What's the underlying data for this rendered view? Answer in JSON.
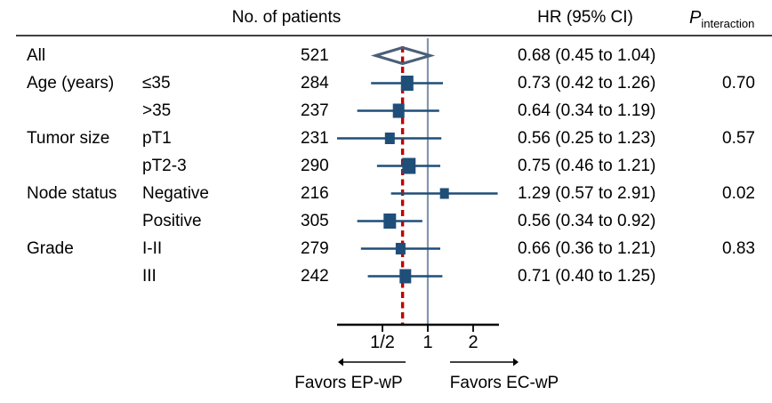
{
  "header": {
    "patients": "No. of patients",
    "hr": "HR (95% CI)",
    "p_main": "P",
    "p_sub": "interaction"
  },
  "axis": {
    "scale": "log2",
    "ticks": [
      {
        "label": "1/2",
        "value": 0.5
      },
      {
        "label": "1",
        "value": 1
      },
      {
        "label": "2",
        "value": 2
      }
    ],
    "range": [
      0.25,
      3.0
    ],
    "favors_left": "Favors EP-wP",
    "favors_right": "Favors EC-wP"
  },
  "colors": {
    "marker": "#1f4e79",
    "ci_line": "#1f4e79",
    "ref_line": "#8496b0",
    "overall_dashed_line": "#c00000",
    "diamond_stroke": "#4b5f78",
    "axis": "#000000",
    "rule": "#404040",
    "text": "#000000"
  },
  "chart_data": {
    "type": "forest",
    "scale": "log2",
    "overall": {
      "group": "All",
      "n": 521,
      "hr": 0.68,
      "lo": 0.45,
      "hi": 1.04,
      "p": ""
    },
    "rows": [
      {
        "group": "Age (years)",
        "sub": "≤35",
        "n": 284,
        "hr": 0.73,
        "lo": 0.42,
        "hi": 1.26,
        "p": "0.70",
        "marker_size": 14
      },
      {
        "group": "",
        "sub": ">35",
        "n": 237,
        "hr": 0.64,
        "lo": 0.34,
        "hi": 1.19,
        "p": "",
        "marker_size": 13
      },
      {
        "group": "Tumor size",
        "sub": "pT1",
        "n": 231,
        "hr": 0.56,
        "lo": 0.25,
        "hi": 1.23,
        "p": "0.57",
        "marker_size": 11
      },
      {
        "group": "",
        "sub": "pT2-3",
        "n": 290,
        "hr": 0.75,
        "lo": 0.46,
        "hi": 1.21,
        "p": "",
        "marker_size": 15
      },
      {
        "group": "Node status",
        "sub": "Negative",
        "n": 216,
        "hr": 1.29,
        "lo": 0.57,
        "hi": 2.91,
        "p": "0.02",
        "marker_size": 10
      },
      {
        "group": "",
        "sub": "Positive",
        "n": 305,
        "hr": 0.56,
        "lo": 0.34,
        "hi": 0.92,
        "p": "",
        "marker_size": 14
      },
      {
        "group": "Grade",
        "sub": "I-II",
        "n": 279,
        "hr": 0.66,
        "lo": 0.36,
        "hi": 1.21,
        "p": "0.83",
        "marker_size": 11
      },
      {
        "group": "",
        "sub": "III",
        "n": 242,
        "hr": 0.71,
        "lo": 0.4,
        "hi": 1.25,
        "p": "",
        "marker_size": 13
      }
    ],
    "ci_text_format": "HR (LO to HI)"
  }
}
